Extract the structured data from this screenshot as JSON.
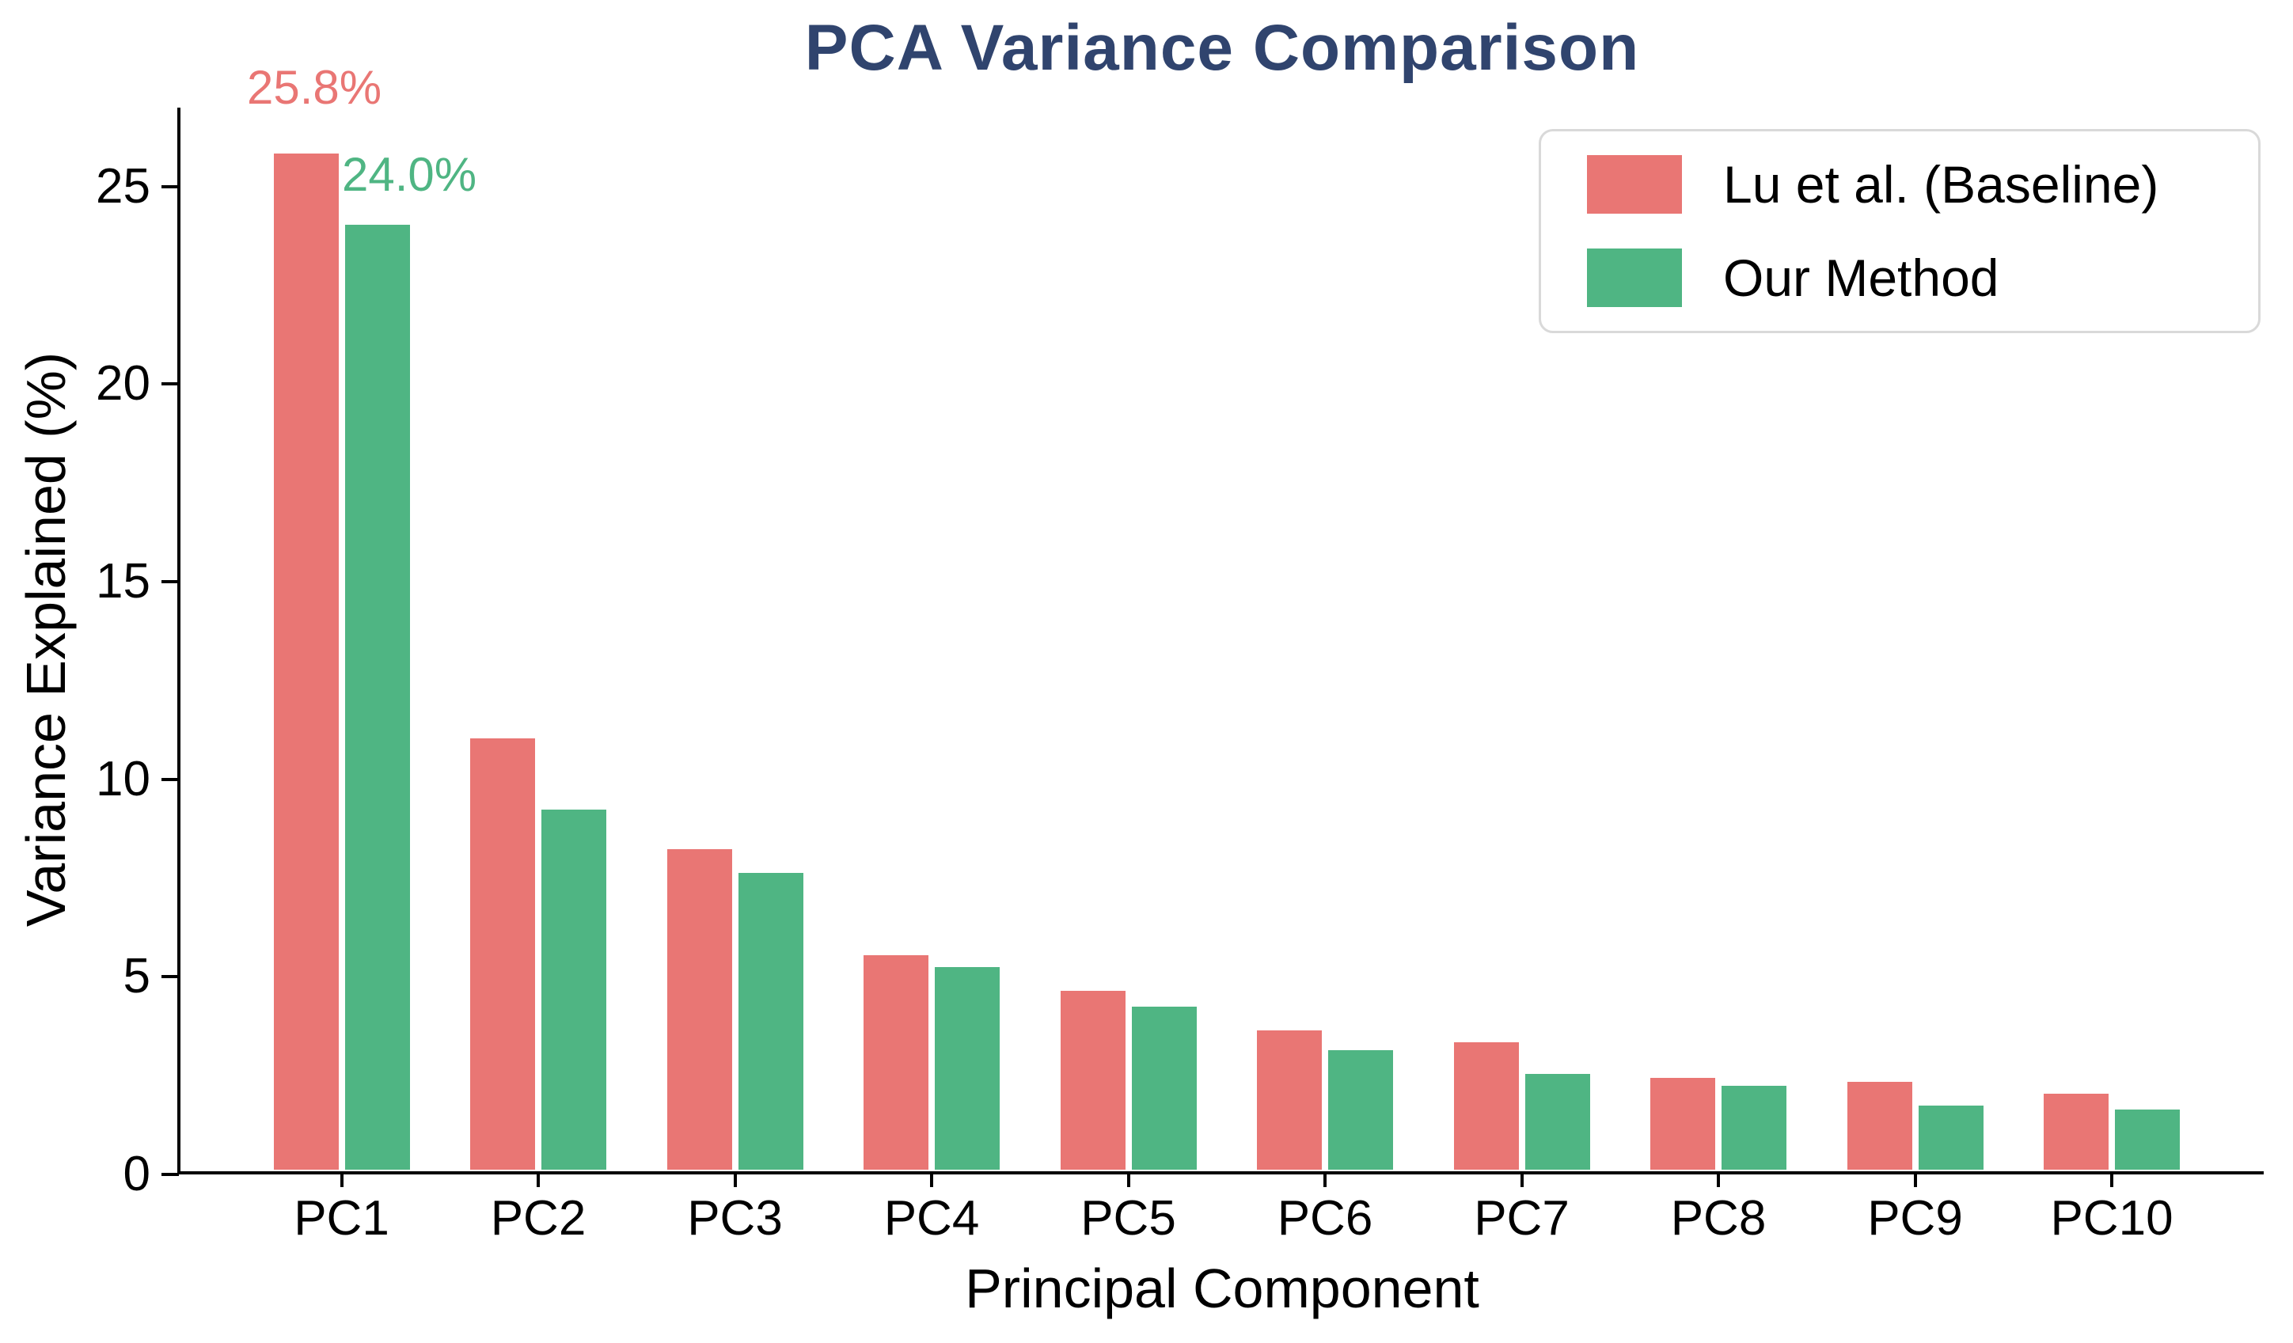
{
  "chart_data": {
    "type": "bar",
    "title": "PCA Variance Comparison",
    "title_color": "#30446E",
    "xlabel": "Principal Component",
    "ylabel": "Variance Explained (%)",
    "categories": [
      "PC1",
      "PC2",
      "PC3",
      "PC4",
      "PC5",
      "PC6",
      "PC7",
      "PC8",
      "PC9",
      "PC10"
    ],
    "series": [
      {
        "name": "Lu et al. (Baseline)",
        "color": "#E97674",
        "values": [
          25.8,
          11.0,
          8.2,
          5.5,
          4.6,
          3.6,
          3.3,
          2.4,
          2.3,
          2.0
        ]
      },
      {
        "name": "Our Method",
        "color": "#4FB583",
        "values": [
          24.0,
          9.2,
          7.6,
          5.2,
          4.2,
          3.1,
          2.5,
          2.2,
          1.7,
          1.6
        ]
      }
    ],
    "ylim": [
      0,
      27
    ],
    "yticks": [
      0,
      5,
      10,
      15,
      20,
      25
    ],
    "grid": false,
    "legend_position": "upper right",
    "annotations": [
      {
        "text": "25.8%",
        "color": "#E97674",
        "series": "Lu et al. (Baseline)",
        "category": "PC1"
      },
      {
        "text": "24.0%",
        "color": "#4FB583",
        "series": "Our Method",
        "category": "PC1"
      }
    ]
  }
}
